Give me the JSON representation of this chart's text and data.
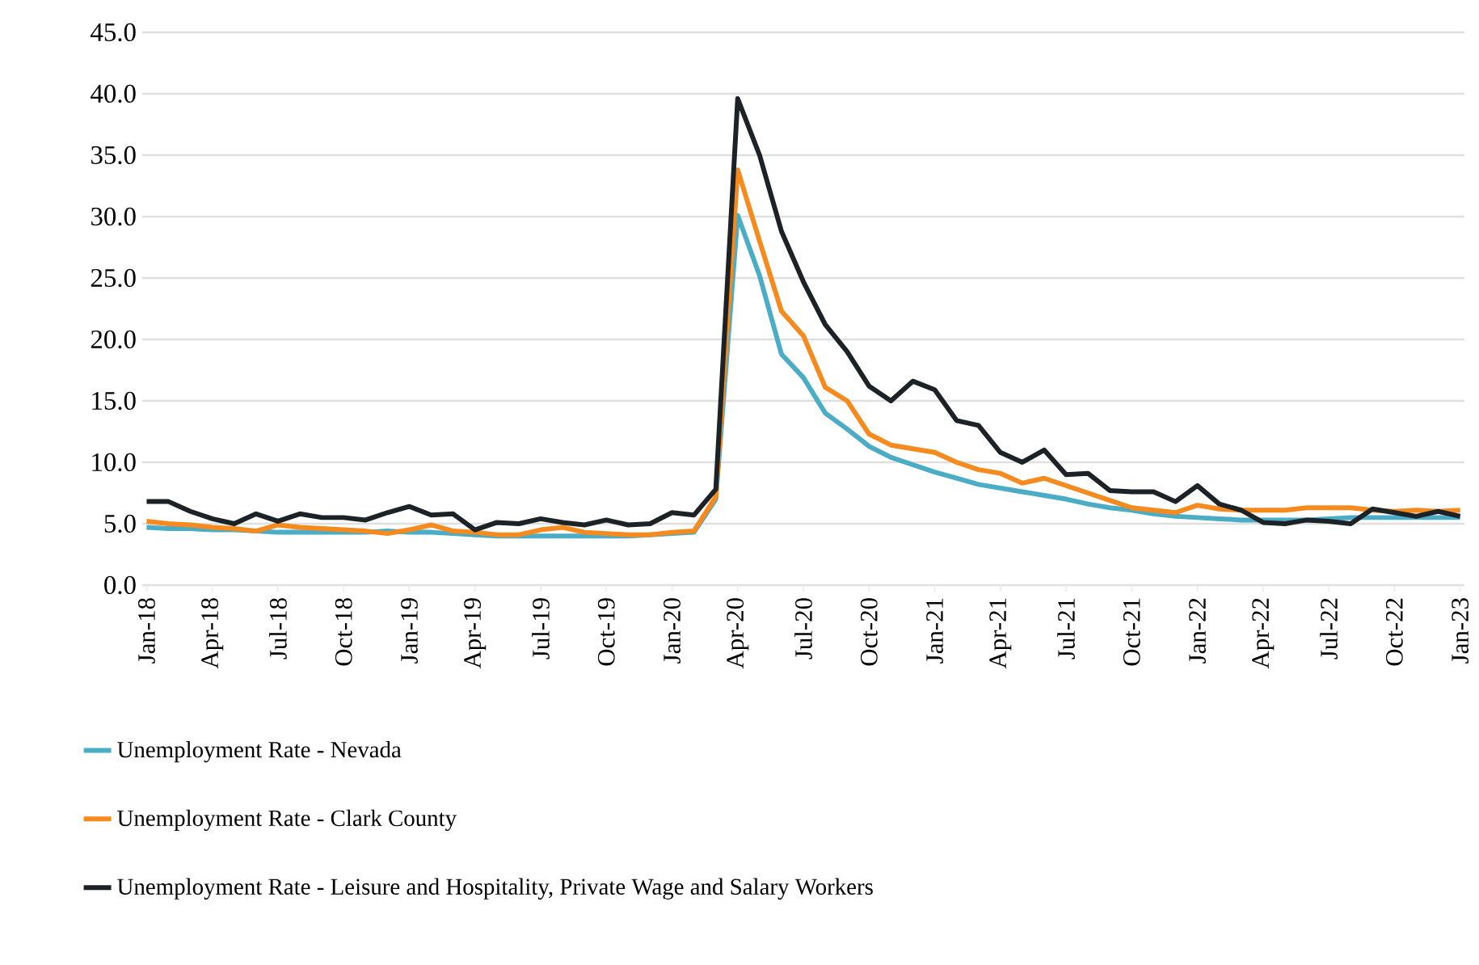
{
  "chart_data": {
    "type": "line",
    "categories": [
      "Jan-18",
      null,
      null,
      "Apr-18",
      null,
      null,
      "Jul-18",
      null,
      null,
      "Oct-18",
      null,
      null,
      "Jan-19",
      null,
      null,
      "Apr-19",
      null,
      null,
      "Jul-19",
      null,
      null,
      "Oct-19",
      null,
      null,
      "Jan-20",
      null,
      null,
      "Apr-20",
      null,
      null,
      "Jul-20",
      null,
      null,
      "Oct-20",
      null,
      null,
      "Jan-21",
      null,
      null,
      "Apr-21",
      null,
      null,
      "Jul-21",
      null,
      null,
      "Oct-21",
      null,
      null,
      "Jan-22",
      null,
      null,
      "Apr-22",
      null,
      null,
      "Jul-22",
      null,
      null,
      "Oct-22",
      null,
      null,
      "Jan-23"
    ],
    "series": [
      {
        "name": "Unemployment Rate - Nevada",
        "color": "#4bacc6",
        "values": [
          4.7,
          4.6,
          4.6,
          4.5,
          4.5,
          4.4,
          4.3,
          4.3,
          4.3,
          4.3,
          4.3,
          4.4,
          4.3,
          4.3,
          4.2,
          4.1,
          4.0,
          4.0,
          4.0,
          4.0,
          4.0,
          4.0,
          4.0,
          4.1,
          4.2,
          4.3,
          7.0,
          30.1,
          25.2,
          18.8,
          16.9,
          14.0,
          12.7,
          11.3,
          10.4,
          9.8,
          9.2,
          8.7,
          8.2,
          7.9,
          7.6,
          7.3,
          7.0,
          6.6,
          6.3,
          6.1,
          5.8,
          5.6,
          5.5,
          5.4,
          5.3,
          5.3,
          5.3,
          5.3,
          5.4,
          5.5,
          5.5,
          5.5,
          5.5,
          5.5,
          5.5
        ]
      },
      {
        "name": "Unemployment Rate - Clark County",
        "color": "#f58a1f",
        "values": [
          5.2,
          5.0,
          4.9,
          4.7,
          4.6,
          4.4,
          4.9,
          4.7,
          4.6,
          4.5,
          4.4,
          4.2,
          4.5,
          4.9,
          4.4,
          4.3,
          4.1,
          4.1,
          4.5,
          4.7,
          4.3,
          4.2,
          4.1,
          4.1,
          4.3,
          4.4,
          7.2,
          33.8,
          28.0,
          22.3,
          20.3,
          16.1,
          15.0,
          12.3,
          11.4,
          11.1,
          10.8,
          10.0,
          9.4,
          9.1,
          8.3,
          8.7,
          8.1,
          7.5,
          6.9,
          6.3,
          6.1,
          5.9,
          6.5,
          6.2,
          6.1,
          6.1,
          6.1,
          6.3,
          6.3,
          6.3,
          6.1,
          6.0,
          6.1,
          6.0,
          6.1
        ]
      },
      {
        "name": "Unemployment Rate - Leisure and Hospitality, Private Wage and Salary Workers",
        "color": "#1c2226",
        "values": [
          6.8,
          6.8,
          6.0,
          5.4,
          5.0,
          5.8,
          5.2,
          5.8,
          5.5,
          5.5,
          5.3,
          5.9,
          6.4,
          5.7,
          5.8,
          4.5,
          5.1,
          5.0,
          5.4,
          5.1,
          4.9,
          5.3,
          4.9,
          5.0,
          5.9,
          5.7,
          7.8,
          39.6,
          35.0,
          28.8,
          24.7,
          21.2,
          19.0,
          16.2,
          15.0,
          16.6,
          15.9,
          13.4,
          13.0,
          10.8,
          10.0,
          11.0,
          9.0,
          9.1,
          7.7,
          7.6,
          7.6,
          6.8,
          8.1,
          6.6,
          6.1,
          5.1,
          5.0,
          5.3,
          5.2,
          5.0,
          6.2,
          5.9,
          5.6,
          6.0,
          5.6
        ]
      }
    ],
    "ylim": [
      0,
      45
    ],
    "yticks": [
      {
        "value": 0,
        "label": "0.0"
      },
      {
        "value": 5,
        "label": "5.0"
      },
      {
        "value": 10,
        "label": "10.0"
      },
      {
        "value": 15,
        "label": "15.0"
      },
      {
        "value": 20,
        "label": "20.0"
      },
      {
        "value": 25,
        "label": "25.0"
      },
      {
        "value": 30,
        "label": "30.0"
      },
      {
        "value": 35,
        "label": "35.0"
      },
      {
        "value": 40,
        "label": "40.0"
      },
      {
        "value": 45,
        "label": "45.0"
      }
    ],
    "grid": "y",
    "legend": "bottom",
    "marker": "none",
    "line_style": "solid"
  }
}
